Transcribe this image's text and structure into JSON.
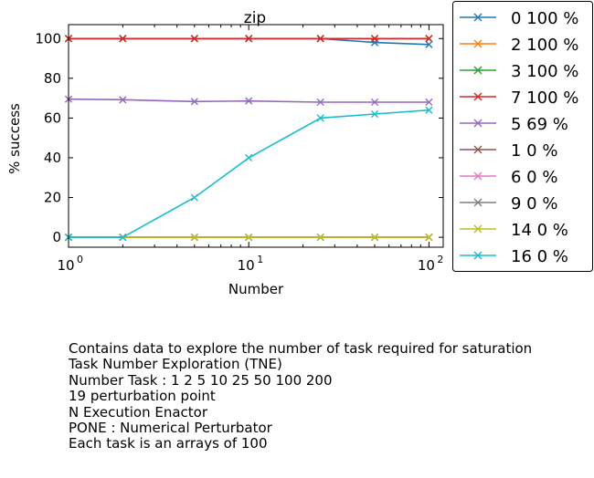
{
  "chart_data": {
    "type": "line",
    "title": "zip",
    "xlabel": "Number",
    "ylabel": "% success",
    "x_scale": "log",
    "xlim": [
      1,
      120
    ],
    "ylim": [
      -5,
      107
    ],
    "x_ticks": [
      {
        "value": 1,
        "base": "10",
        "exp": "0"
      },
      {
        "value": 10,
        "base": "10",
        "exp": "1"
      },
      {
        "value": 100,
        "base": "10",
        "exp": "2"
      }
    ],
    "y_ticks": [
      0,
      20,
      40,
      60,
      80,
      100
    ],
    "marker": "x",
    "legend_position": "outside-right",
    "x": [
      1,
      2,
      5,
      10,
      25,
      50,
      100
    ],
    "series": [
      {
        "name": "0 100 %",
        "color": "#1f77b4",
        "values": [
          100,
          100,
          100,
          100,
          100,
          98,
          97
        ]
      },
      {
        "name": "2 100 %",
        "color": "#ff7f0e",
        "values": [
          100,
          100,
          100,
          100,
          100,
          100,
          100
        ]
      },
      {
        "name": "3 100 %",
        "color": "#2ca02c",
        "values": [
          100,
          100,
          100,
          100,
          100,
          100,
          100
        ]
      },
      {
        "name": "7 100 %",
        "color": "#d62728",
        "values": [
          100,
          100,
          100,
          100,
          100,
          100,
          100
        ]
      },
      {
        "name": "5 69 %",
        "color": "#9467bd",
        "values": [
          69.5,
          69.2,
          68.3,
          68.6,
          68,
          68,
          68
        ]
      },
      {
        "name": "1 0 %",
        "color": "#8c564b",
        "values": [
          0,
          0,
          0,
          0,
          0,
          0,
          0
        ]
      },
      {
        "name": "6 0 %",
        "color": "#e377c2",
        "values": [
          0,
          0,
          0,
          0,
          0,
          0,
          0
        ]
      },
      {
        "name": "9 0 %",
        "color": "#7f7f7f",
        "values": [
          0,
          0,
          0,
          0,
          0,
          0,
          0
        ]
      },
      {
        "name": "14 0 %",
        "color": "#bcbd22",
        "values": [
          0,
          0,
          0,
          0,
          0,
          0,
          0
        ]
      },
      {
        "name": "16 0 %",
        "color": "#17becf",
        "values": [
          0,
          0,
          20,
          40,
          60,
          62,
          64
        ]
      }
    ]
  },
  "notes": [
    "Contains data to explore the number of task required for saturation",
    "Task Number Exploration (TNE)",
    "Number Task : 1 2 5 10 25 50 100 200",
    "19 perturbation point",
    "N Execution Enactor",
    "PONE : Numerical Perturbator",
    "Each task is an arrays of 100"
  ]
}
